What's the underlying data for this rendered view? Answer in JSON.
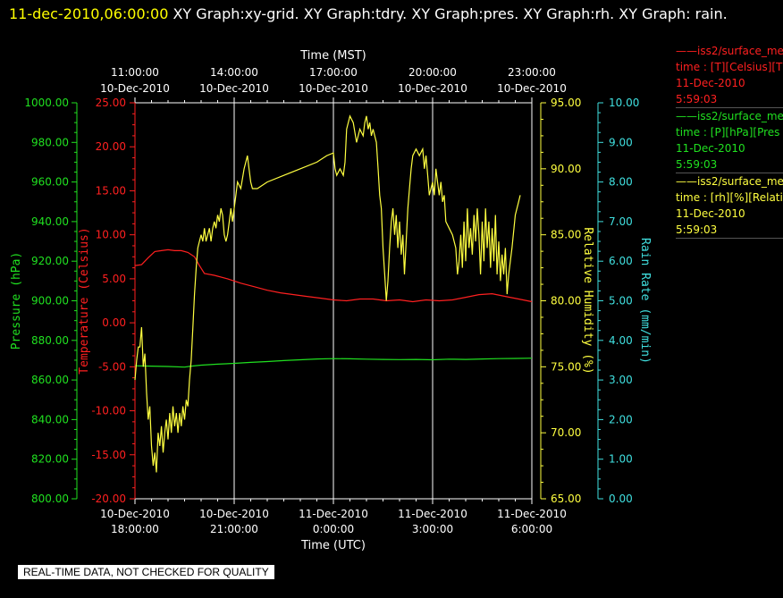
{
  "header": {
    "timestamp": "11-dec-2010,06:00:00",
    "graphs": "XY Graph:xy-grid.  XY Graph:tdry.  XY Graph:pres.  XY Graph:rh.  XY Graph: rain."
  },
  "notice": "REAL-TIME DATA, NOT CHECKED FOR QUALITY",
  "legend": [
    {
      "line1": "——iss2/surface_me",
      "line2": "time : [T][Celsius][T",
      "line3": "11-Dec-2010",
      "line4": "5:59:03",
      "color": "#ff2020"
    },
    {
      "line1": "——iss2/surface_me",
      "line2": "time : [P][hPa][Pres",
      "line3": "11-Dec-2010",
      "line4": "5:59:03",
      "color": "#20e020"
    },
    {
      "line1": "——iss2/surface_me",
      "line2": "time : [rh][%][Relati",
      "line3": "11-Dec-2010",
      "line4": "5:59:03",
      "color": "#ffff40"
    }
  ],
  "chart_data": {
    "type": "line",
    "grid": "vertical only",
    "top_axis": {
      "label": "Time (MST)",
      "ticks": [
        {
          "l1": "11:00:00",
          "l2": "10-Dec-2010"
        },
        {
          "l1": "14:00:00",
          "l2": "10-Dec-2010"
        },
        {
          "l1": "17:00:00",
          "l2": "10-Dec-2010"
        },
        {
          "l1": "20:00:00",
          "l2": "10-Dec-2010"
        },
        {
          "l1": "23:00:00",
          "l2": "10-Dec-2010"
        }
      ]
    },
    "bottom_axis": {
      "label": "Time (UTC)",
      "ticks": [
        {
          "l1": "10-Dec-2010",
          "l2": "18:00:00"
        },
        {
          "l1": "10-Dec-2010",
          "l2": "21:00:00"
        },
        {
          "l1": "11-Dec-2010",
          "l2": "0:00:00"
        },
        {
          "l1": "11-Dec-2010",
          "l2": "3:00:00"
        },
        {
          "l1": "11-Dec-2010",
          "l2": "6:00:00"
        }
      ]
    },
    "y_axes": [
      {
        "name": "pressure",
        "label": "Pressure (hPa)",
        "color": "#20e020",
        "ylim": [
          800,
          1000
        ],
        "ticks": [
          "800.00",
          "820.00",
          "840.00",
          "860.00",
          "880.00",
          "900.00",
          "920.00",
          "940.00",
          "960.00",
          "980.00",
          "1000.00"
        ]
      },
      {
        "name": "temperature",
        "label": "Temperature (Celsius)",
        "color": "#ff2020",
        "ylim": [
          -20,
          25
        ],
        "ticks": [
          "-20.00",
          "-15.00",
          "-10.00",
          "-5.00",
          "0.00",
          "5.00",
          "10.00",
          "15.00",
          "20.00",
          "25.00"
        ]
      },
      {
        "name": "rh",
        "label": "Relative Humidity (%)",
        "color": "#ffff40",
        "ylim": [
          65,
          95
        ],
        "ticks": [
          "65.00",
          "70.00",
          "75.00",
          "80.00",
          "85.00",
          "90.00",
          "95.00"
        ]
      },
      {
        "name": "rain",
        "label": "Rain Rate (mm/min)",
        "color": "#40e0e0",
        "ylim": [
          0,
          10
        ],
        "ticks": [
          "0.00",
          "1.00",
          "2.00",
          "3.00",
          "4.00",
          "5.00",
          "6.00",
          "7.00",
          "8.00",
          "9.00",
          "10.00"
        ]
      }
    ],
    "x_range_hours_utc": [
      18,
      30
    ],
    "series": [
      {
        "axis": "temperature",
        "color": "#ff2020",
        "points": [
          [
            18.0,
            6.5
          ],
          [
            18.2,
            6.6
          ],
          [
            18.4,
            7.4
          ],
          [
            18.6,
            8.1
          ],
          [
            18.8,
            8.2
          ],
          [
            19.0,
            8.3
          ],
          [
            19.2,
            8.2
          ],
          [
            19.4,
            8.2
          ],
          [
            19.6,
            8.0
          ],
          [
            19.8,
            7.5
          ],
          [
            19.95,
            6.5
          ],
          [
            20.1,
            5.6
          ],
          [
            20.4,
            5.4
          ],
          [
            20.8,
            5.0
          ],
          [
            21.2,
            4.5
          ],
          [
            21.6,
            4.1
          ],
          [
            22.0,
            3.7
          ],
          [
            22.4,
            3.4
          ],
          [
            22.8,
            3.2
          ],
          [
            23.2,
            3.0
          ],
          [
            23.6,
            2.8
          ],
          [
            24.0,
            2.6
          ],
          [
            24.4,
            2.5
          ],
          [
            24.8,
            2.7
          ],
          [
            25.2,
            2.7
          ],
          [
            25.6,
            2.5
          ],
          [
            26.0,
            2.6
          ],
          [
            26.4,
            2.4
          ],
          [
            26.8,
            2.6
          ],
          [
            27.2,
            2.5
          ],
          [
            27.6,
            2.6
          ],
          [
            28.0,
            2.9
          ],
          [
            28.4,
            3.2
          ],
          [
            28.8,
            3.3
          ],
          [
            29.2,
            3.0
          ],
          [
            29.6,
            2.7
          ],
          [
            30.0,
            2.4
          ]
        ]
      },
      {
        "axis": "pressure",
        "color": "#20e020",
        "points": [
          [
            18.0,
            867.2
          ],
          [
            18.5,
            867.0
          ],
          [
            19.0,
            866.8
          ],
          [
            19.5,
            866.5
          ],
          [
            19.7,
            867.0
          ],
          [
            20.0,
            867.5
          ],
          [
            20.5,
            868.0
          ],
          [
            21.0,
            868.4
          ],
          [
            21.5,
            868.9
          ],
          [
            22.0,
            869.3
          ],
          [
            22.5,
            869.8
          ],
          [
            23.0,
            870.2
          ],
          [
            23.5,
            870.6
          ],
          [
            24.0,
            870.8
          ],
          [
            24.5,
            870.7
          ],
          [
            25.0,
            870.5
          ],
          [
            25.5,
            870.4
          ],
          [
            26.0,
            870.3
          ],
          [
            26.5,
            870.4
          ],
          [
            27.0,
            870.2
          ],
          [
            27.5,
            870.5
          ],
          [
            28.0,
            870.4
          ],
          [
            28.5,
            870.6
          ],
          [
            29.0,
            870.8
          ],
          [
            29.5,
            870.9
          ],
          [
            30.0,
            871.0
          ]
        ]
      },
      {
        "axis": "rh",
        "color": "#ffff40",
        "points": [
          [
            18.0,
            74
          ],
          [
            18.05,
            75.5
          ],
          [
            18.1,
            76.5
          ],
          [
            18.15,
            76.5
          ],
          [
            18.2,
            78
          ],
          [
            18.25,
            75
          ],
          [
            18.3,
            76
          ],
          [
            18.35,
            73
          ],
          [
            18.4,
            71
          ],
          [
            18.45,
            72
          ],
          [
            18.5,
            69
          ],
          [
            18.55,
            67.5
          ],
          [
            18.6,
            68.5
          ],
          [
            18.65,
            67
          ],
          [
            18.7,
            70
          ],
          [
            18.75,
            69
          ],
          [
            18.8,
            70.5
          ],
          [
            18.85,
            68.5
          ],
          [
            18.9,
            70
          ],
          [
            18.95,
            71
          ],
          [
            19.0,
            69.5
          ],
          [
            19.05,
            71.5
          ],
          [
            19.1,
            70
          ],
          [
            19.15,
            72
          ],
          [
            19.2,
            70.5
          ],
          [
            19.25,
            71.5
          ],
          [
            19.3,
            70
          ],
          [
            19.35,
            71.5
          ],
          [
            19.4,
            70.5
          ],
          [
            19.45,
            72
          ],
          [
            19.5,
            71
          ],
          [
            19.55,
            72.5
          ],
          [
            19.6,
            72
          ],
          [
            19.65,
            74
          ],
          [
            19.7,
            75.5
          ],
          [
            19.75,
            78
          ],
          [
            19.8,
            80.5
          ],
          [
            19.85,
            82.5
          ],
          [
            19.9,
            84
          ],
          [
            19.95,
            84.5
          ],
          [
            20.0,
            85
          ],
          [
            20.05,
            84.5
          ],
          [
            20.1,
            85.5
          ],
          [
            20.15,
            84.5
          ],
          [
            20.2,
            85
          ],
          [
            20.25,
            85.5
          ],
          [
            20.3,
            84.5
          ],
          [
            20.35,
            85.5
          ],
          [
            20.4,
            86
          ],
          [
            20.45,
            85.5
          ],
          [
            20.5,
            86.5
          ],
          [
            20.55,
            86
          ],
          [
            20.6,
            87
          ],
          [
            20.65,
            86.5
          ],
          [
            20.7,
            85
          ],
          [
            20.75,
            84.5
          ],
          [
            20.8,
            85
          ],
          [
            20.85,
            86
          ],
          [
            20.9,
            87
          ],
          [
            20.95,
            86
          ],
          [
            21.0,
            87
          ],
          [
            21.05,
            88
          ],
          [
            21.1,
            89
          ],
          [
            21.2,
            88.5
          ],
          [
            21.3,
            90
          ],
          [
            21.35,
            90.5
          ],
          [
            21.4,
            91
          ],
          [
            21.45,
            90
          ],
          [
            21.5,
            89
          ],
          [
            21.55,
            88.5
          ],
          [
            21.7,
            88.5
          ],
          [
            22.0,
            89
          ],
          [
            22.5,
            89.5
          ],
          [
            23.0,
            90
          ],
          [
            23.5,
            90.5
          ],
          [
            23.8,
            91
          ],
          [
            24.0,
            91.2
          ],
          [
            24.05,
            90
          ],
          [
            24.1,
            89.5
          ],
          [
            24.2,
            90
          ],
          [
            24.3,
            89.5
          ],
          [
            24.35,
            90.5
          ],
          [
            24.4,
            93
          ],
          [
            24.5,
            94
          ],
          [
            24.6,
            93.5
          ],
          [
            24.7,
            92
          ],
          [
            24.8,
            93
          ],
          [
            24.9,
            92.5
          ],
          [
            24.95,
            93.5
          ],
          [
            25.0,
            94
          ],
          [
            25.05,
            93
          ],
          [
            25.1,
            93.5
          ],
          [
            25.15,
            92.5
          ],
          [
            25.2,
            93
          ],
          [
            25.3,
            92
          ],
          [
            25.35,
            90
          ],
          [
            25.4,
            88
          ],
          [
            25.45,
            87
          ],
          [
            25.5,
            84
          ],
          [
            25.55,
            82
          ],
          [
            25.6,
            80
          ],
          [
            25.65,
            81.5
          ],
          [
            25.7,
            84
          ],
          [
            25.75,
            86
          ],
          [
            25.8,
            87
          ],
          [
            25.85,
            85
          ],
          [
            25.9,
            86.5
          ],
          [
            25.95,
            84
          ],
          [
            26.0,
            86
          ],
          [
            26.05,
            83.5
          ],
          [
            26.1,
            85
          ],
          [
            26.15,
            82
          ],
          [
            26.2,
            84.5
          ],
          [
            26.25,
            87
          ],
          [
            26.3,
            88.5
          ],
          [
            26.35,
            90
          ],
          [
            26.4,
            91
          ],
          [
            26.5,
            91.5
          ],
          [
            26.6,
            91
          ],
          [
            26.7,
            91.5
          ],
          [
            26.75,
            90
          ],
          [
            26.8,
            91
          ],
          [
            26.85,
            89.5
          ],
          [
            26.9,
            88
          ],
          [
            27.0,
            89
          ],
          [
            27.05,
            88
          ],
          [
            27.1,
            90
          ],
          [
            27.15,
            89
          ],
          [
            27.2,
            88
          ],
          [
            27.25,
            89
          ],
          [
            27.3,
            87.5
          ],
          [
            27.35,
            88
          ],
          [
            27.4,
            86
          ],
          [
            27.5,
            85.5
          ],
          [
            27.6,
            85
          ],
          [
            27.7,
            84
          ],
          [
            27.75,
            82
          ],
          [
            27.8,
            83
          ],
          [
            27.85,
            85
          ],
          [
            27.9,
            82.5
          ],
          [
            27.95,
            86
          ],
          [
            28.0,
            83
          ],
          [
            28.05,
            87
          ],
          [
            28.1,
            84
          ],
          [
            28.15,
            85.5
          ],
          [
            28.2,
            83.5
          ],
          [
            28.25,
            86.5
          ],
          [
            28.3,
            84.5
          ],
          [
            28.35,
            87
          ],
          [
            28.4,
            85
          ],
          [
            28.45,
            82
          ],
          [
            28.5,
            86
          ],
          [
            28.55,
            83
          ],
          [
            28.6,
            87
          ],
          [
            28.65,
            84
          ],
          [
            28.7,
            86
          ],
          [
            28.75,
            82.5
          ],
          [
            28.8,
            85.5
          ],
          [
            28.85,
            83
          ],
          [
            28.9,
            86.5
          ],
          [
            28.95,
            82
          ],
          [
            29.0,
            84.5
          ],
          [
            29.05,
            81.5
          ],
          [
            29.1,
            83.5
          ],
          [
            29.15,
            82
          ],
          [
            29.2,
            84
          ],
          [
            29.25,
            80.5
          ],
          [
            29.3,
            82
          ],
          [
            29.4,
            84
          ],
          [
            29.5,
            86.5
          ],
          [
            29.6,
            87.5
          ],
          [
            29.65,
            88
          ]
        ]
      }
    ]
  }
}
